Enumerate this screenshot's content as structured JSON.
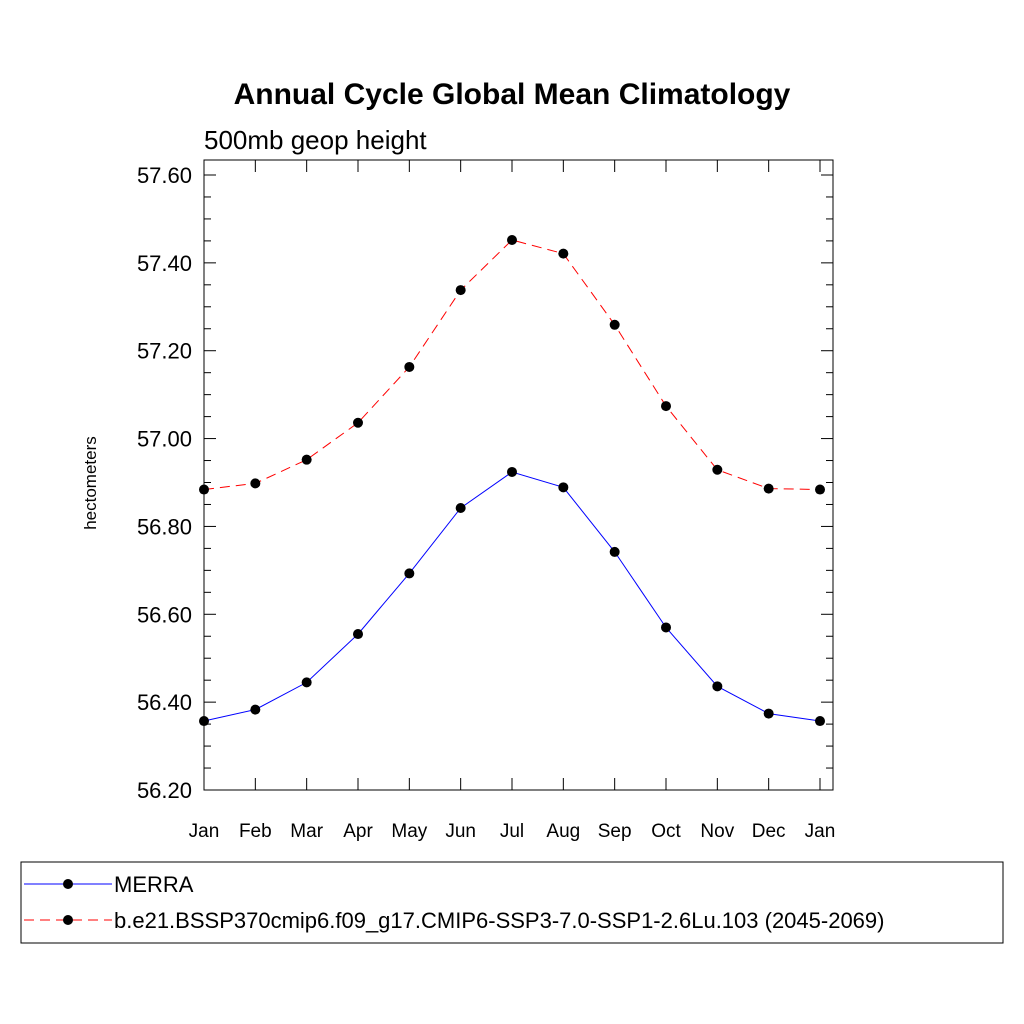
{
  "chart_data": {
    "type": "line",
    "title": "Annual Cycle Global Mean Climatology",
    "subtitle": "500mb geop height",
    "xlabel": "",
    "ylabel": "hectometers",
    "categories": [
      "Jan",
      "Feb",
      "Mar",
      "Apr",
      "May",
      "Jun",
      "Jul",
      "Aug",
      "Sep",
      "Oct",
      "Nov",
      "Dec",
      "Jan"
    ],
    "ylim": [
      56.2,
      57.6
    ],
    "yticks": [
      "56.20",
      "56.40",
      "56.60",
      "56.80",
      "57.00",
      "57.20",
      "57.40",
      "57.60"
    ],
    "ytick_values": [
      56.2,
      56.4,
      56.6,
      56.8,
      57.0,
      57.2,
      57.4,
      57.6
    ],
    "grid": false,
    "legend_position": "bottom",
    "series": [
      {
        "name": "MERRA",
        "color": "#0000ff",
        "line_style": "solid",
        "marker": "filled-circle",
        "values": [
          56.357,
          56.383,
          56.445,
          56.555,
          56.693,
          56.842,
          56.924,
          56.889,
          56.742,
          56.57,
          56.436,
          56.374,
          56.357
        ]
      },
      {
        "name": "b.e21.BSSP370cmip6.f09_g17.CMIP6-SSP3-7.0-SSP1-2.6Lu.103 (2045-2069)",
        "color": "#ff0000",
        "line_style": "dashed",
        "marker": "filled-circle",
        "values": [
          56.884,
          56.898,
          56.952,
          57.036,
          57.163,
          57.338,
          57.452,
          57.421,
          57.259,
          57.074,
          56.929,
          56.886,
          56.884
        ]
      }
    ]
  }
}
